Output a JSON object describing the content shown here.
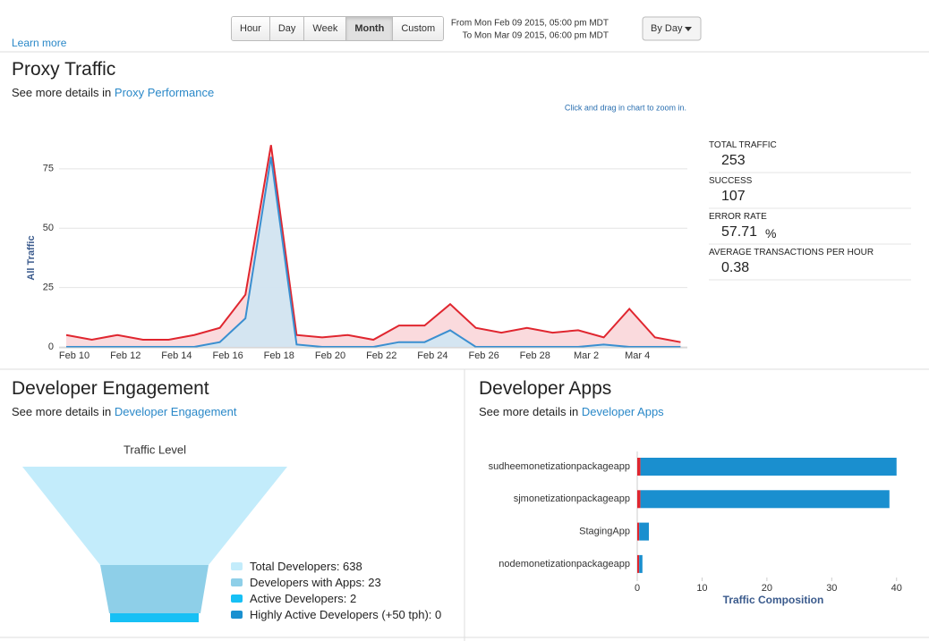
{
  "header": {
    "learn_more": "Learn more",
    "range_buttons": [
      "Hour",
      "Day",
      "Week",
      "Month",
      "Custom"
    ],
    "active_button": 3,
    "from": "From Mon Feb 09 2015, 05:00 pm MDT",
    "to": "To Mon Mar 09 2015, 06:00 pm MDT",
    "group_by": "By Day"
  },
  "proxy_traffic": {
    "title": "Proxy Traffic",
    "details_prefix": "See more details in",
    "details_link": "Proxy Performance",
    "zoom_hint": "Click and drag in chart to zoom in.",
    "stats": [
      {
        "label": "TOTAL TRAFFIC",
        "value": 253
      },
      {
        "label": "SUCCESS",
        "value": 107
      },
      {
        "label": "ERROR RATE",
        "value": 57.71,
        "unit": "%"
      },
      {
        "label": "AVERAGE TRANSACTIONS PER HOUR",
        "value": 0.38
      }
    ]
  },
  "developer_engagement": {
    "title": "Developer Engagement",
    "details_prefix": "See more details in",
    "details_link": "Developer Engagement",
    "funnel_title": "Traffic Level",
    "levels": [
      {
        "label": "Total Developers: 638",
        "color": "#c3ecfb"
      },
      {
        "label": "Developers with Apps: 23",
        "color": "#8ecfe8"
      },
      {
        "label": "Active Developers: 2",
        "color": "#17c0f5"
      },
      {
        "label": "Highly Active Developers (+50 tph): 0",
        "color": "#1a90d0"
      }
    ]
  },
  "developer_apps": {
    "title": "Developer Apps",
    "details_prefix": "See more details in",
    "details_link": "Developer Apps"
  },
  "chart_data": [
    {
      "type": "area",
      "ylabel": "All Traffic",
      "categories": [
        "Feb 10",
        null,
        "Feb 12",
        null,
        "Feb 14",
        null,
        "Feb 16",
        null,
        "Feb 18",
        null,
        "Feb 20",
        null,
        "Feb 22",
        null,
        "Feb 24",
        null,
        "Feb 26",
        null,
        "Feb 28",
        null,
        "Mar 2",
        null,
        "Mar 4",
        null,
        null
      ],
      "series": [
        {
          "color": "#e0262f",
          "fill": "#f9d4d7",
          "values": [
            5,
            3,
            5,
            3,
            3,
            5,
            8,
            22,
            85,
            5,
            4,
            5,
            3,
            9,
            9,
            18,
            8,
            6,
            8,
            6,
            7,
            4,
            16,
            4,
            2
          ]
        },
        {
          "color": "#3a8fd0",
          "fill": "#cce6f4",
          "values": [
            0,
            0,
            0,
            0,
            0,
            0,
            2,
            12,
            80,
            1,
            0,
            0,
            0,
            2,
            2,
            7,
            0,
            0,
            0,
            0,
            0,
            1,
            0,
            0,
            0
          ]
        }
      ],
      "ylim": [
        0,
        90
      ],
      "yticks": [
        0,
        25,
        50,
        75
      ],
      "grid": true
    },
    {
      "type": "hbar",
      "stacked": true,
      "xlabel": "Traffic Composition",
      "categories": [
        "sudheemonetizationpackageapp",
        "sjmonetizationpackageapp",
        "StagingApp",
        "nodemonetizationpackageapp"
      ],
      "series": [
        {
          "color": "#e0262f",
          "values": [
            0.5,
            0.5,
            0.3,
            0.3
          ]
        },
        {
          "color": "#1a8fcf",
          "values": [
            39.5,
            38.4,
            1.5,
            0.5
          ]
        }
      ],
      "xlim": [
        0,
        41
      ],
      "xticks": [
        0,
        10,
        20,
        30,
        40
      ]
    }
  ]
}
